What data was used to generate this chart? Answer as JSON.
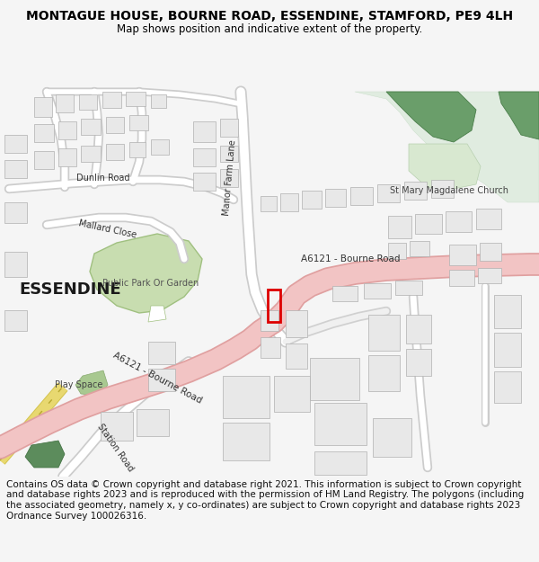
{
  "title_line1": "MONTAGUE HOUSE, BOURNE ROAD, ESSENDINE, STAMFORD, PE9 4LH",
  "title_line2": "Map shows position and indicative extent of the property.",
  "footer_text": "Contains OS data © Crown copyright and database right 2021. This information is subject to Crown copyright and database rights 2023 and is reproduced with the permission of HM Land Registry. The polygons (including the associated geometry, namely x, y co-ordinates) are subject to Crown copyright and database rights 2023 Ordnance Survey 100026316.",
  "background_color": "#f5f5f5",
  "map_bg": "#ffffff",
  "road_color": "#f2c4c4",
  "road_edge_color": "#e0a0a0",
  "building_color": "#e8e8e8",
  "building_edge": "#b0b0b0",
  "park_color": "#c8ddb0",
  "park_edge": "#a0c080",
  "dark_green": "#5c8c5c",
  "light_green": "#d8e8d0",
  "title_fontsize": 10,
  "subtitle_fontsize": 8.5,
  "footer_fontsize": 7.5,
  "label_color": "#444444",
  "road_label_color": "#333333"
}
